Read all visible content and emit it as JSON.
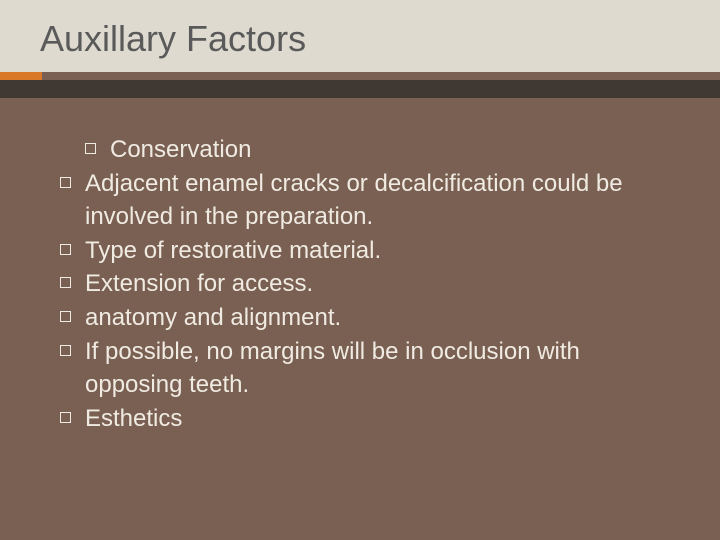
{
  "slide": {
    "title": "Auxillary Factors",
    "background_color": "#7a6052",
    "title_bg_color": "#dedad0",
    "title_color": "#5a5a5a",
    "title_fontsize": 36,
    "accent_orange": "#d97828",
    "accent_dark": "#3f3833",
    "text_color": "#f0ebe2",
    "bullet_fontsize": 24,
    "bullet_border_color": "#f0ebe2",
    "bullets": [
      {
        "text": "Conservation",
        "indented": true
      },
      {
        "text": "Adjacent enamel cracks or decalcification could be involved in the preparation.",
        "indented": false
      },
      {
        "text": "Type of restorative material.",
        "indented": false
      },
      {
        "text": "Extension for access.",
        "indented": false
      },
      {
        "text": " anatomy and alignment.",
        "indented": false
      },
      {
        "text": "If possible, no margins will be in occlusion with opposing teeth.",
        "indented": false
      },
      {
        "text": "Esthetics",
        "indented": false
      }
    ]
  }
}
